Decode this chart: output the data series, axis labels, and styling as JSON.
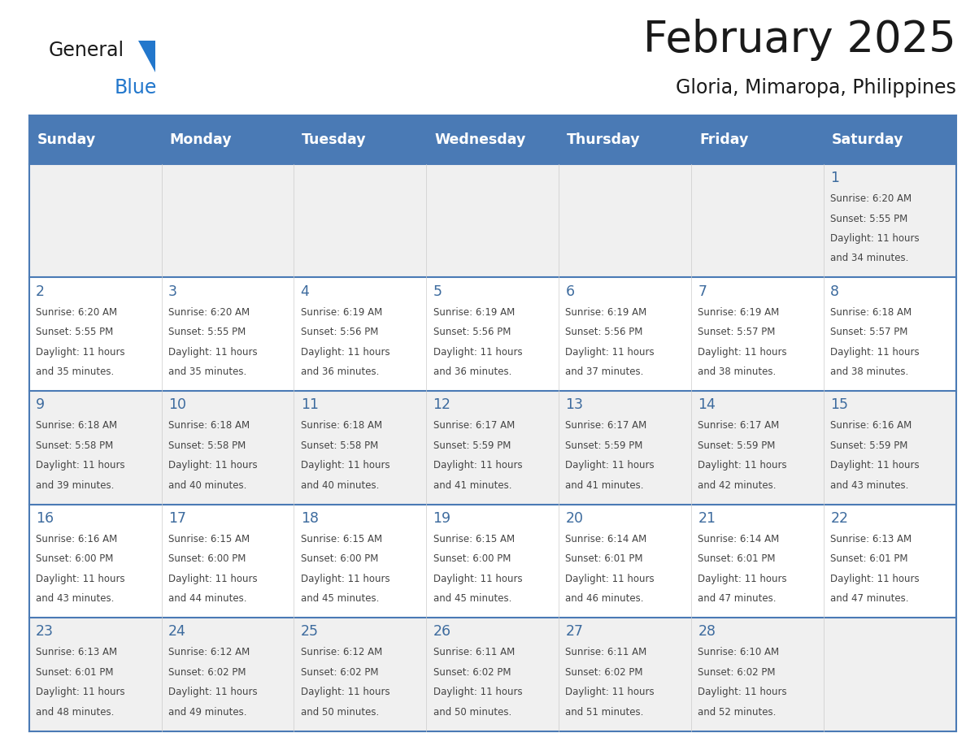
{
  "title": "February 2025",
  "subtitle": "Gloria, Mimaropa, Philippines",
  "days_of_week": [
    "Sunday",
    "Monday",
    "Tuesday",
    "Wednesday",
    "Thursday",
    "Friday",
    "Saturday"
  ],
  "header_bg": "#4a7ab5",
  "header_text": "#ffffff",
  "cell_bg_light": "#f0f0f0",
  "cell_bg_white": "#ffffff",
  "day_num_color": "#3d6b9e",
  "info_text_color": "#444444",
  "border_color": "#4a7ab5",
  "title_color": "#1a1a1a",
  "subtitle_color": "#1a1a1a",
  "logo_general_color": "#1a1a1a",
  "logo_blue_color": "#2277cc",
  "logo_triangle_color": "#2277cc",
  "calendar_data": [
    [
      null,
      null,
      null,
      null,
      null,
      null,
      {
        "day": 1,
        "sunrise": "6:20 AM",
        "sunset": "5:55 PM",
        "daylight": "11 hours and 34 minutes."
      }
    ],
    [
      {
        "day": 2,
        "sunrise": "6:20 AM",
        "sunset": "5:55 PM",
        "daylight": "11 hours and 35 minutes."
      },
      {
        "day": 3,
        "sunrise": "6:20 AM",
        "sunset": "5:55 PM",
        "daylight": "11 hours and 35 minutes."
      },
      {
        "day": 4,
        "sunrise": "6:19 AM",
        "sunset": "5:56 PM",
        "daylight": "11 hours and 36 minutes."
      },
      {
        "day": 5,
        "sunrise": "6:19 AM",
        "sunset": "5:56 PM",
        "daylight": "11 hours and 36 minutes."
      },
      {
        "day": 6,
        "sunrise": "6:19 AM",
        "sunset": "5:56 PM",
        "daylight": "11 hours and 37 minutes."
      },
      {
        "day": 7,
        "sunrise": "6:19 AM",
        "sunset": "5:57 PM",
        "daylight": "11 hours and 38 minutes."
      },
      {
        "day": 8,
        "sunrise": "6:18 AM",
        "sunset": "5:57 PM",
        "daylight": "11 hours and 38 minutes."
      }
    ],
    [
      {
        "day": 9,
        "sunrise": "6:18 AM",
        "sunset": "5:58 PM",
        "daylight": "11 hours and 39 minutes."
      },
      {
        "day": 10,
        "sunrise": "6:18 AM",
        "sunset": "5:58 PM",
        "daylight": "11 hours and 40 minutes."
      },
      {
        "day": 11,
        "sunrise": "6:18 AM",
        "sunset": "5:58 PM",
        "daylight": "11 hours and 40 minutes."
      },
      {
        "day": 12,
        "sunrise": "6:17 AM",
        "sunset": "5:59 PM",
        "daylight": "11 hours and 41 minutes."
      },
      {
        "day": 13,
        "sunrise": "6:17 AM",
        "sunset": "5:59 PM",
        "daylight": "11 hours and 41 minutes."
      },
      {
        "day": 14,
        "sunrise": "6:17 AM",
        "sunset": "5:59 PM",
        "daylight": "11 hours and 42 minutes."
      },
      {
        "day": 15,
        "sunrise": "6:16 AM",
        "sunset": "5:59 PM",
        "daylight": "11 hours and 43 minutes."
      }
    ],
    [
      {
        "day": 16,
        "sunrise": "6:16 AM",
        "sunset": "6:00 PM",
        "daylight": "11 hours and 43 minutes."
      },
      {
        "day": 17,
        "sunrise": "6:15 AM",
        "sunset": "6:00 PM",
        "daylight": "11 hours and 44 minutes."
      },
      {
        "day": 18,
        "sunrise": "6:15 AM",
        "sunset": "6:00 PM",
        "daylight": "11 hours and 45 minutes."
      },
      {
        "day": 19,
        "sunrise": "6:15 AM",
        "sunset": "6:00 PM",
        "daylight": "11 hours and 45 minutes."
      },
      {
        "day": 20,
        "sunrise": "6:14 AM",
        "sunset": "6:01 PM",
        "daylight": "11 hours and 46 minutes."
      },
      {
        "day": 21,
        "sunrise": "6:14 AM",
        "sunset": "6:01 PM",
        "daylight": "11 hours and 47 minutes."
      },
      {
        "day": 22,
        "sunrise": "6:13 AM",
        "sunset": "6:01 PM",
        "daylight": "11 hours and 47 minutes."
      }
    ],
    [
      {
        "day": 23,
        "sunrise": "6:13 AM",
        "sunset": "6:01 PM",
        "daylight": "11 hours and 48 minutes."
      },
      {
        "day": 24,
        "sunrise": "6:12 AM",
        "sunset": "6:02 PM",
        "daylight": "11 hours and 49 minutes."
      },
      {
        "day": 25,
        "sunrise": "6:12 AM",
        "sunset": "6:02 PM",
        "daylight": "11 hours and 50 minutes."
      },
      {
        "day": 26,
        "sunrise": "6:11 AM",
        "sunset": "6:02 PM",
        "daylight": "11 hours and 50 minutes."
      },
      {
        "day": 27,
        "sunrise": "6:11 AM",
        "sunset": "6:02 PM",
        "daylight": "11 hours and 51 minutes."
      },
      {
        "day": 28,
        "sunrise": "6:10 AM",
        "sunset": "6:02 PM",
        "daylight": "11 hours and 52 minutes."
      },
      null
    ]
  ]
}
